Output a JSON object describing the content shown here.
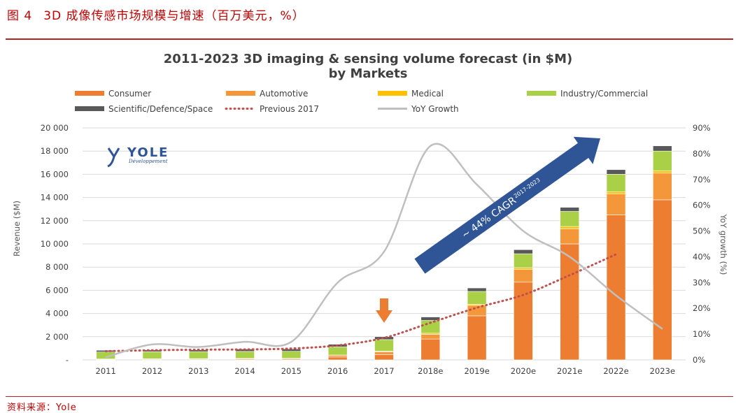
{
  "figure": {
    "number": "图 4",
    "caption": "3D 成像传感市场规模与增速（百万美元，%）",
    "source": "资料来源：Yole"
  },
  "colors": {
    "Consumer": "#ED7D31",
    "Automotive": "#F4963A",
    "Medical": "#FFC000",
    "Industry/Commercial": "#A9D046",
    "Scientific/Defence/Space": "#595959",
    "Previous 2017": "#C0504D",
    "YoY Growth": "#BFBFBF",
    "arrow_cagr": "#2F5597",
    "arrow_2017": "#ED7D31",
    "rule": "#B22222",
    "caption": "#C00000"
  },
  "logo": {
    "text": "YOLE",
    "sub": "Développement"
  },
  "annotation": {
    "cagr_text": "~ 44% CAGR",
    "cagr_period": "2017-2023"
  },
  "chart_data": {
    "type": "bar",
    "title": "2011-2023 3D imaging & sensing volume forecast (in $M)",
    "subtitle": "by Markets",
    "stacked": true,
    "categories": [
      "2011",
      "2012",
      "2013",
      "2014",
      "2015",
      "2016",
      "2017",
      "2018e",
      "2019e",
      "2020e",
      "2021e",
      "2022e",
      "2023e"
    ],
    "ylabel": "Revenue ($M)",
    "ylim": [
      0,
      20000
    ],
    "yticks": [
      "-",
      "2 000",
      "4 000",
      "6 000",
      "8 000",
      "10 000",
      "12 000",
      "14 000",
      "16 000",
      "18 000",
      "20 000"
    ],
    "y2label": "YoY growth (%)",
    "y2lim": [
      0,
      90
    ],
    "y2ticks": [
      "0%",
      "10%",
      "20%",
      "30%",
      "40%",
      "50%",
      "60%",
      "70%",
      "80%",
      "90%"
    ],
    "grid": true,
    "legend_position": "top",
    "series": [
      {
        "name": "Consumer",
        "kind": "bar",
        "values": [
          40,
          50,
          60,
          70,
          70,
          250,
          450,
          1800,
          3800,
          6700,
          10000,
          12500,
          13800
        ]
      },
      {
        "name": "Automotive",
        "kind": "bar",
        "values": [
          30,
          40,
          40,
          50,
          60,
          150,
          250,
          400,
          900,
          1100,
          1300,
          1800,
          2300
        ]
      },
      {
        "name": "Medical",
        "kind": "bar",
        "values": [
          10,
          10,
          10,
          10,
          10,
          20,
          50,
          100,
          100,
          150,
          200,
          200,
          200
        ]
      },
      {
        "name": "Industry/Commercial",
        "kind": "bar",
        "values": [
          600,
          600,
          600,
          600,
          600,
          700,
          1000,
          1100,
          1100,
          1200,
          1300,
          1500,
          1700
        ]
      },
      {
        "name": "Scientific/Defence/Space",
        "kind": "bar",
        "values": [
          150,
          150,
          150,
          200,
          200,
          230,
          250,
          300,
          300,
          350,
          350,
          400,
          450
        ]
      },
      {
        "name": "Previous 2017",
        "kind": "line",
        "style": "dotted",
        "values": [
          750,
          830,
          880,
          900,
          980,
          1250,
          1900,
          3200,
          4500,
          5600,
          7300,
          9100,
          null
        ]
      },
      {
        "name": "YoY Growth",
        "kind": "line",
        "axis": "right",
        "values": [
          1,
          6,
          5,
          7,
          7,
          30,
          42,
          83,
          68,
          50,
          40,
          25,
          12
        ]
      }
    ]
  }
}
